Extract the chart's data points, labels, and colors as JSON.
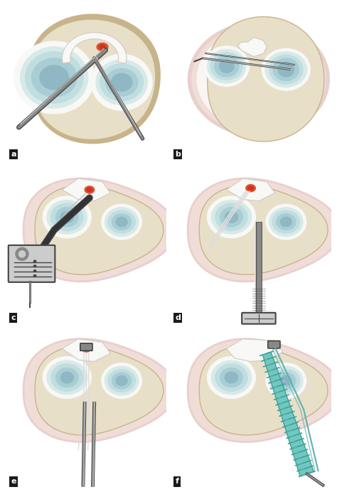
{
  "background_color": "#ffffff",
  "labels": [
    "a",
    "b",
    "c",
    "d",
    "e",
    "f"
  ],
  "label_bg": "#1a1a1a",
  "label_fg": "#ffffff",
  "label_fontsize": 8,
  "figsize": [
    4.74,
    6.92
  ],
  "dpi": 100,
  "bone_fill": "#e8dfc8",
  "bone_dark": "#c8b48a",
  "bone_mid": "#d8c8a8",
  "cartilage_outer": "#d8eae8",
  "cartilage_mid": "#c0dde0",
  "cartilage_inner": "#a8cdd4",
  "cartilage_deep": "#90b8c4",
  "meniscus_fill": "#f0eeea",
  "meniscus_edge": "#d0ccc4",
  "tissue_rim": "#f0ddd8",
  "tissue_rim2": "#e8d0cc",
  "blood_red": "#c83820",
  "blood_orange": "#e05030",
  "instrument_dark": "#444444",
  "instrument_mid": "#888888",
  "instrument_light": "#cccccc",
  "instrument_shine": "#e8e8e8",
  "suture_gray": "#aaaaaa",
  "suture_white": "#dddddd",
  "teal_implant": "#70c8c0",
  "teal_implant_dark": "#40a098",
  "teal_implant_light": "#a0e0d8",
  "teal_suture": "#60b0b0",
  "pin_color": "#999999",
  "white_tissue": "#f8f8f6",
  "cream": "#f5f0e8"
}
